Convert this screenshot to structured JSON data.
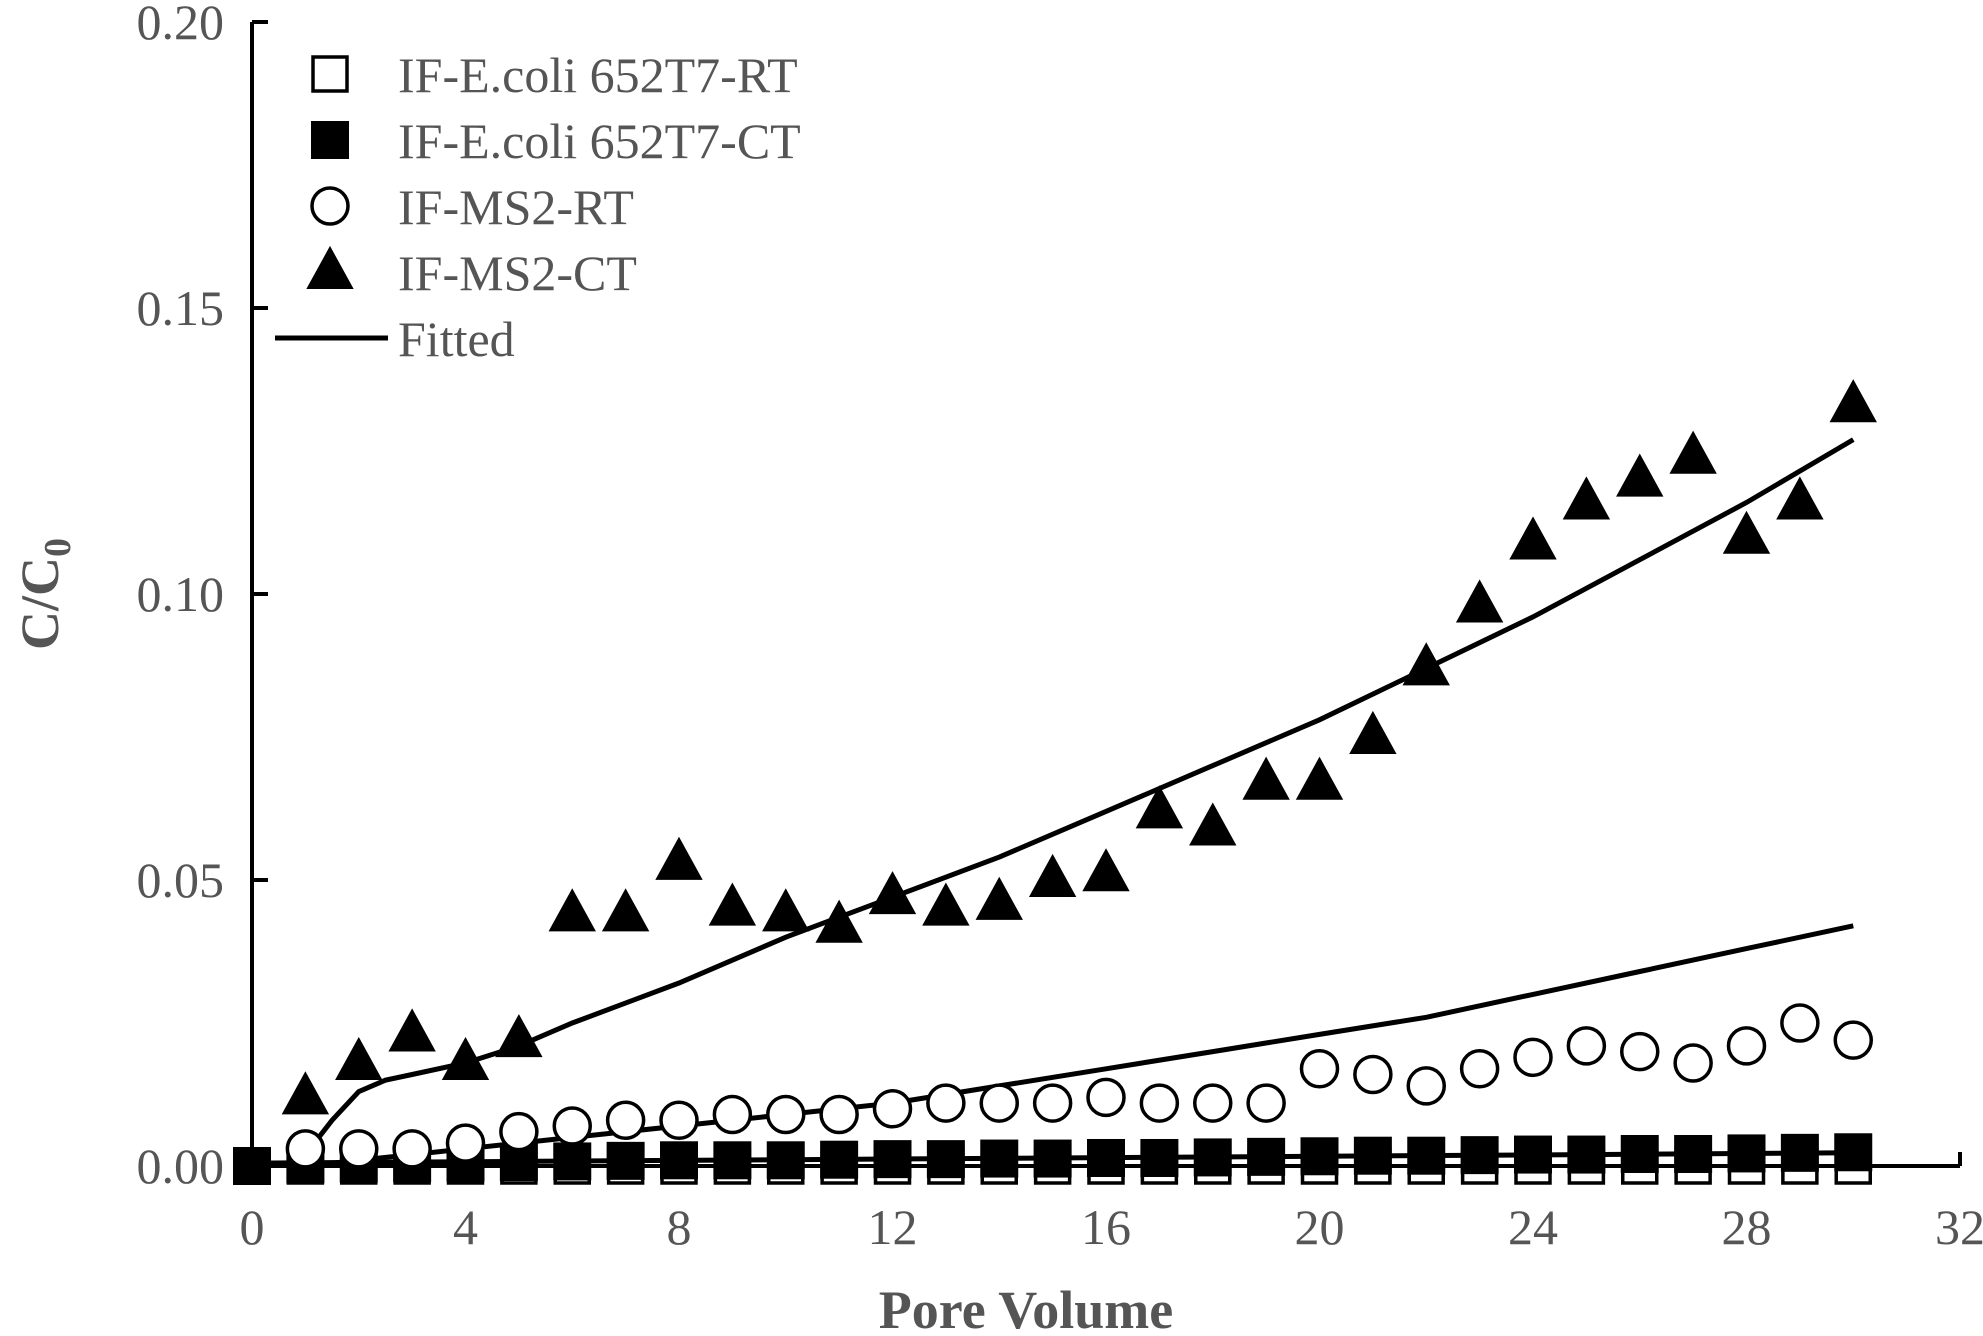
{
  "chart_data": {
    "type": "scatter",
    "xlabel": "Pore Volume",
    "ylabel_main": "C/C",
    "ylabel_sub": "0",
    "xlim": [
      0,
      32
    ],
    "ylim": [
      0,
      0.2
    ],
    "x_ticks": [
      0,
      4,
      8,
      12,
      16,
      20,
      24,
      28,
      32
    ],
    "y_ticks": [
      0.0,
      0.05,
      0.1,
      0.15,
      0.2
    ],
    "x_tick_labels": [
      "0",
      "4",
      "8",
      "12",
      "16",
      "20",
      "24",
      "28",
      "32"
    ],
    "y_tick_labels": [
      "0.00",
      "0.05",
      "0.10",
      "0.15",
      "0.20"
    ],
    "grid": false,
    "legend_position": "top-left",
    "series": [
      {
        "name": "IF-E.coli 652T7-RT",
        "marker": "square-open",
        "x": [
          0,
          1,
          2,
          3,
          4,
          5,
          6,
          7,
          8,
          9,
          10,
          11,
          12,
          13,
          14,
          15,
          16,
          17,
          18,
          19,
          20,
          21,
          22,
          23,
          24,
          25,
          26,
          27,
          28,
          29,
          30
        ],
        "y": [
          0,
          0,
          0,
          0,
          0,
          0,
          0,
          0,
          0,
          0,
          0,
          0,
          0,
          0,
          0,
          0,
          0,
          0,
          0,
          0,
          0,
          0,
          0,
          0,
          0,
          0,
          0,
          0,
          0,
          0,
          0
        ]
      },
      {
        "name": "IF-E.coli 652T7-CT",
        "marker": "square-filled",
        "x": [
          0,
          1,
          2,
          3,
          4,
          5,
          6,
          7,
          8,
          9,
          10,
          11,
          12,
          13,
          14,
          15,
          16,
          17,
          18,
          19,
          20,
          21,
          22,
          23,
          24,
          25,
          26,
          27,
          28,
          29,
          30
        ],
        "y": [
          0,
          0.0003,
          0.0004,
          0.0005,
          0.0006,
          0.0007,
          0.0008,
          0.0009,
          0.001,
          0.001,
          0.001,
          0.0011,
          0.0012,
          0.0012,
          0.0013,
          0.0013,
          0.0014,
          0.0014,
          0.0015,
          0.0016,
          0.0017,
          0.0018,
          0.0018,
          0.0019,
          0.002,
          0.002,
          0.0021,
          0.0021,
          0.0022,
          0.0023,
          0.0024
        ]
      },
      {
        "name": "IF-MS2-RT",
        "marker": "circle-open",
        "x": [
          1,
          2,
          3,
          4,
          5,
          6,
          7,
          8,
          9,
          10,
          11,
          12,
          13,
          14,
          15,
          16,
          17,
          18,
          19,
          20,
          21,
          22,
          23,
          24,
          25,
          26,
          27,
          28,
          29,
          30
        ],
        "y": [
          0.003,
          0.003,
          0.003,
          0.004,
          0.006,
          0.007,
          0.008,
          0.008,
          0.009,
          0.009,
          0.009,
          0.01,
          0.011,
          0.011,
          0.011,
          0.012,
          0.011,
          0.011,
          0.011,
          0.017,
          0.016,
          0.014,
          0.017,
          0.019,
          0.021,
          0.02,
          0.018,
          0.021,
          0.025,
          0.022
        ]
      },
      {
        "name": "IF-MS2-CT",
        "marker": "triangle-filled",
        "x": [
          1,
          2,
          3,
          4,
          5,
          6,
          7,
          8,
          9,
          10,
          11,
          12,
          13,
          14,
          15,
          16,
          17,
          18,
          19,
          20,
          21,
          22,
          23,
          24,
          25,
          26,
          27,
          28,
          29,
          30
        ],
        "y": [
          0.012,
          0.018,
          0.023,
          0.018,
          0.022,
          0.044,
          0.044,
          0.053,
          0.045,
          0.044,
          0.042,
          0.047,
          0.045,
          0.046,
          0.05,
          0.051,
          0.062,
          0.059,
          0.067,
          0.067,
          0.075,
          0.087,
          0.098,
          0.109,
          0.116,
          0.12,
          0.124,
          0.11,
          0.116,
          0.133
        ]
      }
    ],
    "fitted": {
      "name": "Fitted",
      "curves": [
        {
          "x": [
            1,
            1.5,
            2,
            2.5,
            3,
            4,
            5,
            6,
            8,
            10,
            12,
            14,
            16,
            18,
            20,
            22,
            24,
            26,
            28,
            30
          ],
          "y": [
            0.002,
            0.008,
            0.013,
            0.015,
            0.016,
            0.018,
            0.021,
            0.025,
            0.032,
            0.04,
            0.047,
            0.054,
            0.062,
            0.07,
            0.078,
            0.087,
            0.096,
            0.106,
            0.116,
            0.127
          ]
        },
        {
          "x": [
            1,
            2,
            3,
            4,
            5,
            6,
            8,
            10,
            12,
            14,
            16,
            18,
            20,
            22,
            24,
            26,
            28,
            30
          ],
          "y": [
            0.0,
            0.001,
            0.002,
            0.003,
            0.004,
            0.005,
            0.007,
            0.009,
            0.011,
            0.014,
            0.017,
            0.02,
            0.023,
            0.026,
            0.03,
            0.034,
            0.038,
            0.042
          ]
        },
        {
          "x": [
            0,
            5,
            10,
            15,
            20,
            25,
            30
          ],
          "y": [
            0.0005,
            0.0008,
            0.0011,
            0.0014,
            0.0017,
            0.002,
            0.0023
          ]
        }
      ]
    }
  }
}
